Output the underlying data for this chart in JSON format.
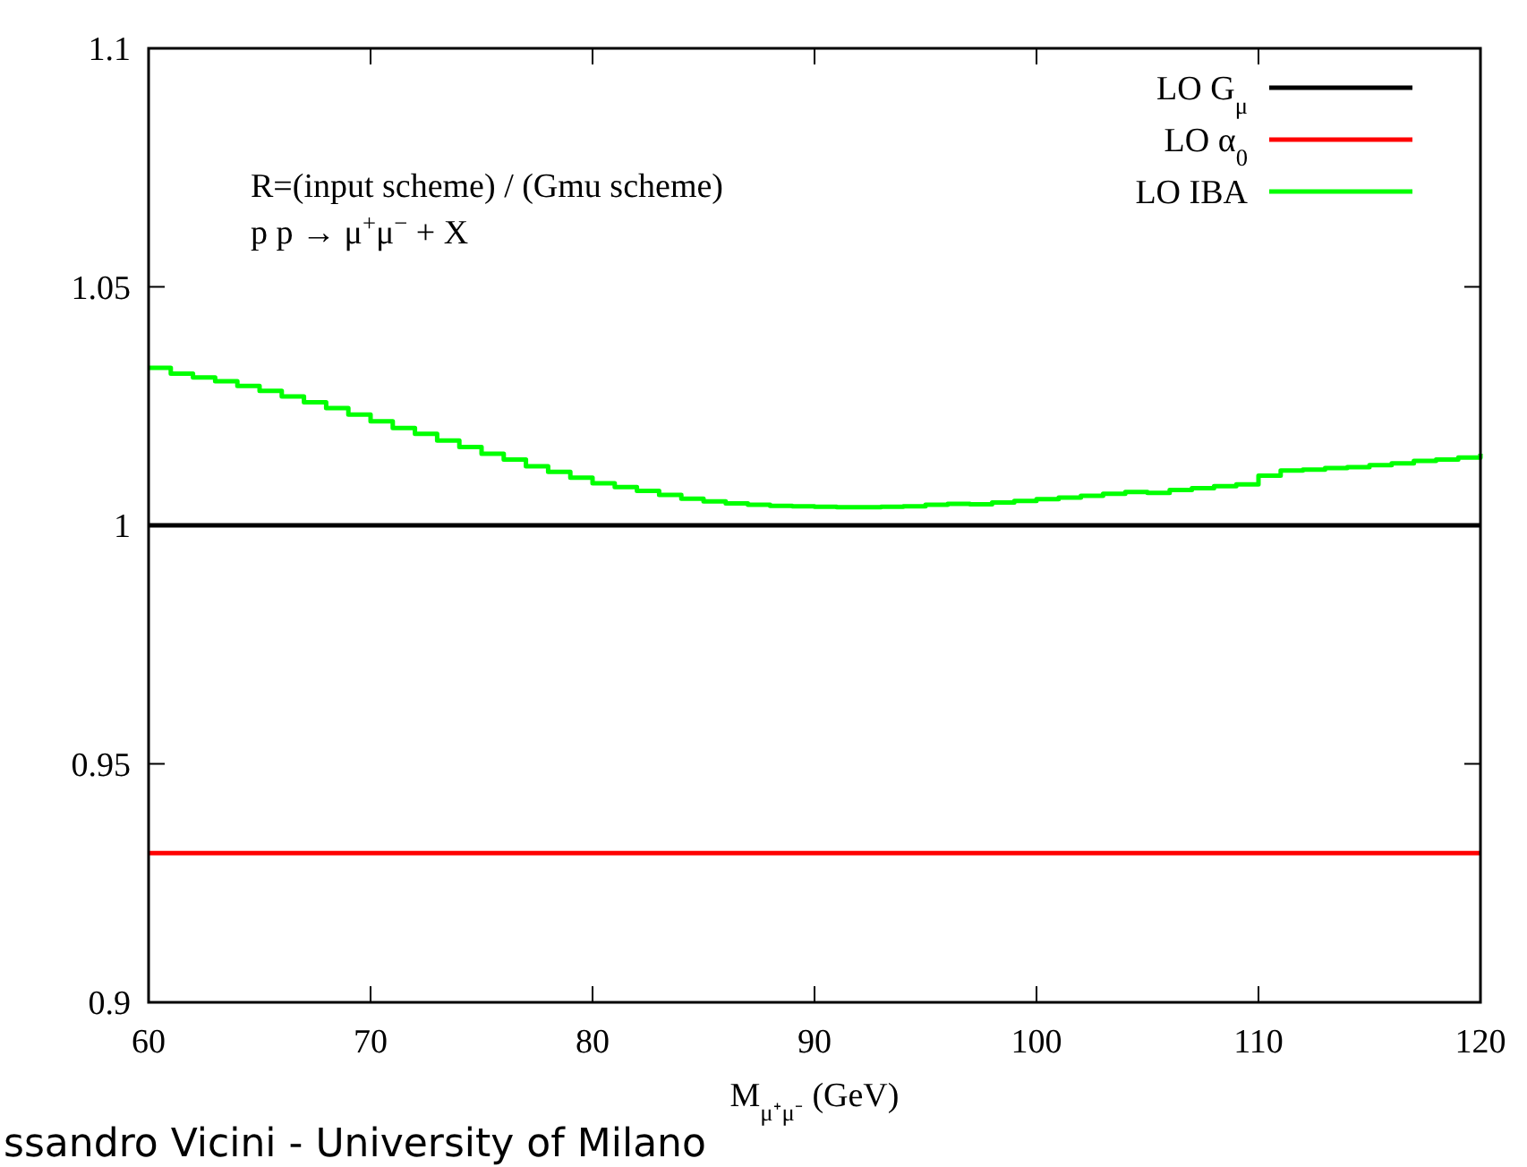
{
  "chart_data": {
    "type": "step",
    "xlabel": "M$_{μ⁺μ⁻}$ (GeV)",
    "xlim": [
      60,
      120
    ],
    "xticks": [
      60,
      70,
      80,
      90,
      100,
      110,
      120
    ],
    "ylim": [
      0.9,
      1.1
    ],
    "yticks": [
      {
        "value": 0.9,
        "label": "0.9"
      },
      {
        "value": 0.95,
        "label": "0.95"
      },
      {
        "value": 1,
        "label": "1"
      },
      {
        "value": 1.05,
        "label": "1.05"
      },
      {
        "value": 1.1,
        "label": "1.1"
      }
    ],
    "grid": false,
    "legend": "top right",
    "line_style": "solid",
    "annotations": [
      "R=(input scheme) / (Gmu scheme)",
      "p p → μ$^{+}$μ$^{−}$ + X",
      "ssandro Vicini - University of Milano"
    ],
    "series": [
      {
        "name": "LO G$_{μ}$",
        "color": "#000000",
        "x": [
          60,
          120
        ],
        "values": [
          1,
          1
        ]
      },
      {
        "name": "LO α$_{0}$",
        "color": "#ff0000",
        "x": [
          60,
          120
        ],
        "values": [
          0.9313,
          0.9313
        ]
      },
      {
        "name": "LO  IBA",
        "color": "#00ff00",
        "x": [
          60,
          61,
          62,
          63,
          64,
          65,
          66,
          67,
          68,
          69,
          70,
          71,
          72,
          73,
          74,
          75,
          76,
          77,
          78,
          79,
          80,
          81,
          82,
          83,
          84,
          85,
          86,
          87,
          88,
          89,
          90,
          91,
          92,
          93,
          94,
          95,
          96,
          97,
          98,
          99,
          100,
          101,
          102,
          103,
          104,
          105,
          106,
          107,
          108,
          109,
          110,
          111,
          112,
          113,
          114,
          115,
          116,
          117,
          118,
          119,
          120
        ],
        "values": [
          1.033,
          1.0318,
          1.031,
          1.0302,
          1.0292,
          1.0282,
          1.027,
          1.0258,
          1.0246,
          1.0232,
          1.0218,
          1.0204,
          1.0192,
          1.0178,
          1.0164,
          1.015,
          1.0138,
          1.0124,
          1.0112,
          1.01,
          1.0088,
          1.008,
          1.0072,
          1.0064,
          1.0056,
          1.005,
          1.0046,
          1.0043,
          1.0041,
          1.004,
          1.0039,
          1.0038,
          1.0038,
          1.0039,
          1.004,
          1.0043,
          1.0045,
          1.0044,
          1.0048,
          1.0051,
          1.0055,
          1.0058,
          1.0062,
          1.0066,
          1.007,
          1.0068,
          1.0074,
          1.0078,
          1.0082,
          1.0086,
          1.0104,
          1.0115,
          1.0117,
          1.012,
          1.0122,
          1.0126,
          1.013,
          1.0135,
          1.0138,
          1.0142,
          1.015
        ]
      }
    ]
  }
}
